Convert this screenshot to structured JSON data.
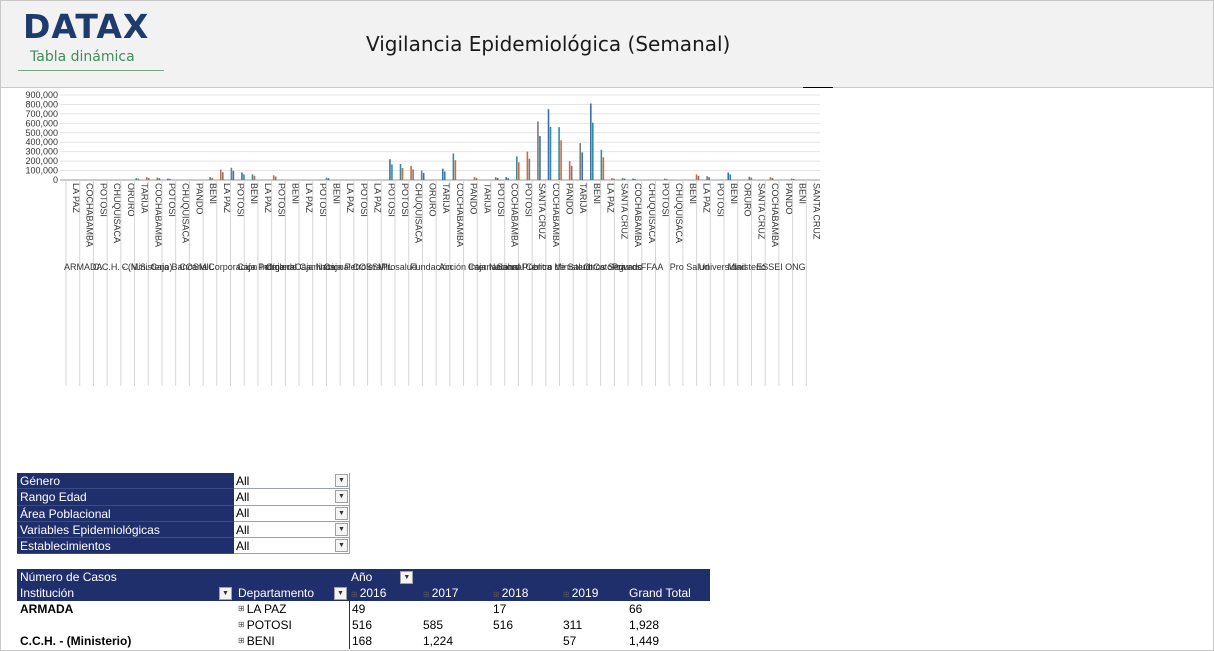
{
  "header": {
    "logo": "DATAX",
    "logo_sub": "Tabla dinámica",
    "title": "Vigilancia Epidemiológica (Semanal)"
  },
  "chart_data": {
    "type": "bar",
    "y_ticks": [
      "900,000",
      "800,000",
      "700,000",
      "600,000",
      "500,000",
      "400,000",
      "300,000",
      "200,000",
      "100,000",
      "0"
    ],
    "ylim": [
      0,
      900000
    ],
    "departments": [
      "LA PAZ",
      "COCHABAMBA",
      "POTOSI",
      "CHUQUISACA",
      "ORURO",
      "TARIJA",
      "COCHABAMBA",
      "POTOSI",
      "CHUQUISACA",
      "PANDO",
      "BENI",
      "LA PAZ",
      "POTOSI",
      "BENI",
      "LA PAZ",
      "POTOSI",
      "BENI",
      "LA PAZ",
      "POTOSI",
      "BENI",
      "LA PAZ",
      "POTOSI",
      "LA PAZ",
      "POTOSI",
      "POTOSI",
      "CHUQUISACA",
      "ORURO",
      "TARIJA",
      "COCHABAMBA",
      "PANDO",
      "TARIJA",
      "POTOSI",
      "COCHABAMBA",
      "POTOSI",
      "SANTA CRUZ",
      "COCHABAMBA",
      "PANDO",
      "TARIJA",
      "BENI",
      "LA PAZ",
      "SANTA CRUZ",
      "COCHABAMBA",
      "CHUQUISACA",
      "POTOSI",
      "CHUQUISACA",
      "BENI",
      "LA PAZ",
      "POTOSI",
      "BENI",
      "ORURO",
      "SANTA CRUZ",
      "COCHABAMBA",
      "PANDO",
      "BENI",
      "SANTA CRUZ"
    ],
    "institution_labels": [
      "ARMADA",
      "C.C.H. - (Ministerio)",
      "C.N.S.",
      "Caja Bancaria",
      "COSMIL",
      "Corporación Indígenal",
      "Caja Petrolera",
      "Caja de Caminos",
      "Caja Nacional",
      "Caja Petrolera",
      "COSSMIL",
      "Prosalud",
      "Fundación",
      "Acción Internacional",
      "Caja Nacional",
      "Salud Pública",
      "Centro de Salud Católica",
      "Ministerio",
      "Otros Seguros",
      "Privado",
      "FFAA",
      "Pro Salud",
      "Universidad",
      "Ministerio",
      "ESSEI",
      "ONG"
    ],
    "series": [
      {
        "name": "2016",
        "color": "#2e8fa3"
      },
      {
        "name": "2017",
        "color": "#d26a3a"
      },
      {
        "name": "2018",
        "color": "#7a7a7a"
      },
      {
        "name": "2019",
        "color": "#3a6fb0"
      }
    ]
  },
  "filters": [
    {
      "label": "Género",
      "value": "All"
    },
    {
      "label": "Rango Edad",
      "value": "All"
    },
    {
      "label": "Área Poblacional",
      "value": "All"
    },
    {
      "label": "Variables Epidemiológicas",
      "value": "All"
    },
    {
      "label": "Establecimientos",
      "value": "All"
    }
  ],
  "pivot": {
    "measure": "Número de Casos",
    "col_field": "Año",
    "row_field1": "Institución",
    "row_field2": "Departamento",
    "years": [
      "2016",
      "2017",
      "2018",
      "2019"
    ],
    "grand_total": "Grand Total",
    "rows": [
      {
        "inst": "ARMADA",
        "dept": "LA PAZ",
        "v2016": "49",
        "v2017": "",
        "v2018": "17",
        "v2019": "",
        "total": "66"
      },
      {
        "inst": "",
        "dept": "POTOSI",
        "v2016": "516",
        "v2017": "585",
        "v2018": "516",
        "v2019": "311",
        "total": "1,928"
      },
      {
        "inst": "C.C.H. - (Ministerio)",
        "dept": "BENI",
        "v2016": "168",
        "v2017": "1,224",
        "v2018": "",
        "v2019": "57",
        "total": "1,449"
      }
    ]
  }
}
